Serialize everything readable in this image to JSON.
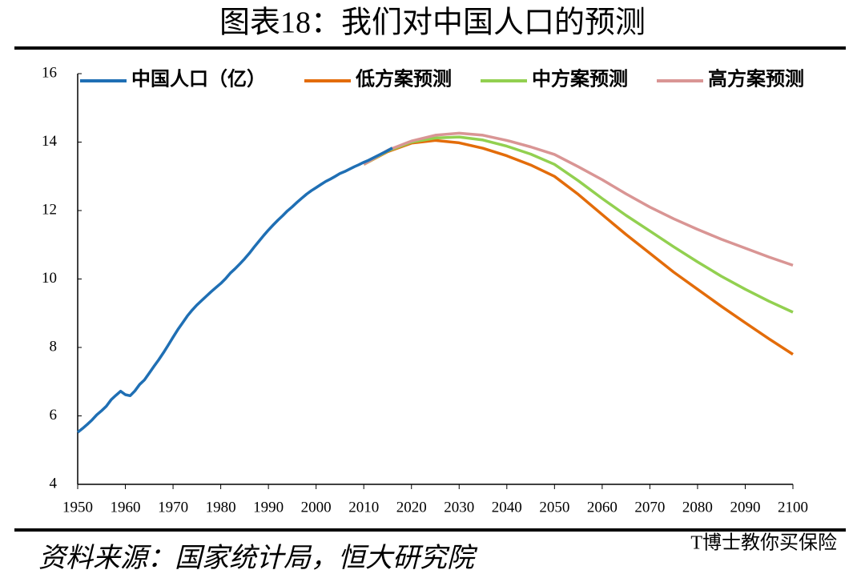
{
  "chart_data": {
    "type": "line",
    "title": "图表18：我们对中国人口的预测",
    "source": "资料来源：国家统计局，恒大研究院",
    "watermark": "T博士教你买保险",
    "xlim": [
      1950,
      2100
    ],
    "xticks": [
      1950,
      1960,
      1970,
      1980,
      1990,
      2000,
      2010,
      2020,
      2030,
      2040,
      2050,
      2060,
      2070,
      2080,
      2090,
      2100
    ],
    "ylim": [
      4,
      16
    ],
    "yticks": [
      4,
      6,
      8,
      10,
      12,
      14,
      16
    ],
    "grid": false,
    "series": [
      {
        "name": "中国人口（亿）",
        "color": "#1f6fb4",
        "x": [
          1950,
          1951,
          1952,
          1953,
          1954,
          1955,
          1956,
          1957,
          1958,
          1959,
          1960,
          1961,
          1962,
          1963,
          1964,
          1965,
          1966,
          1967,
          1968,
          1969,
          1970,
          1971,
          1972,
          1973,
          1974,
          1975,
          1976,
          1977,
          1978,
          1979,
          1980,
          1981,
          1982,
          1983,
          1984,
          1985,
          1986,
          1987,
          1988,
          1989,
          1990,
          1991,
          1992,
          1993,
          1994,
          1995,
          1996,
          1997,
          1998,
          1999,
          2000,
          2001,
          2002,
          2003,
          2004,
          2005,
          2006,
          2007,
          2008,
          2009,
          2010,
          2011,
          2012,
          2013,
          2014,
          2015,
          2016
        ],
        "values": [
          5.52,
          5.63,
          5.75,
          5.88,
          6.03,
          6.15,
          6.28,
          6.47,
          6.6,
          6.72,
          6.62,
          6.59,
          6.73,
          6.92,
          7.05,
          7.25,
          7.45,
          7.64,
          7.85,
          8.07,
          8.3,
          8.52,
          8.72,
          8.92,
          9.09,
          9.24,
          9.37,
          9.5,
          9.63,
          9.75,
          9.87,
          10.01,
          10.17,
          10.3,
          10.44,
          10.59,
          10.75,
          10.93,
          11.1,
          11.27,
          11.43,
          11.58,
          11.72,
          11.85,
          11.99,
          12.11,
          12.24,
          12.36,
          12.48,
          12.58,
          12.67,
          12.76,
          12.85,
          12.92,
          13.0,
          13.08,
          13.14,
          13.21,
          13.28,
          13.34,
          13.41,
          13.47,
          13.54,
          13.61,
          13.68,
          13.75,
          13.83
        ]
      },
      {
        "name": "低方案预测",
        "color": "#e36c0a",
        "x": [
          2010,
          2015,
          2020,
          2025,
          2030,
          2035,
          2040,
          2045,
          2050,
          2055,
          2060,
          2065,
          2070,
          2075,
          2080,
          2085,
          2090,
          2095,
          2100
        ],
        "values": [
          13.35,
          13.72,
          13.97,
          14.05,
          13.98,
          13.82,
          13.6,
          13.33,
          13.0,
          12.47,
          11.88,
          11.3,
          10.75,
          10.2,
          9.7,
          9.2,
          8.72,
          8.25,
          7.8
        ]
      },
      {
        "name": "中方案预测",
        "color": "#92d050",
        "x": [
          2010,
          2015,
          2020,
          2025,
          2030,
          2035,
          2040,
          2045,
          2050,
          2055,
          2060,
          2065,
          2070,
          2075,
          2080,
          2085,
          2090,
          2095,
          2100
        ],
        "values": [
          13.35,
          13.74,
          14.0,
          14.12,
          14.15,
          14.06,
          13.88,
          13.65,
          13.35,
          12.87,
          12.35,
          11.86,
          11.4,
          10.94,
          10.5,
          10.08,
          9.7,
          9.35,
          9.03
        ]
      },
      {
        "name": "高方案预测",
        "color": "#d99594",
        "x": [
          2010,
          2015,
          2020,
          2025,
          2030,
          2035,
          2040,
          2045,
          2050,
          2055,
          2060,
          2065,
          2070,
          2075,
          2080,
          2085,
          2090,
          2095,
          2100
        ],
        "values": [
          13.35,
          13.76,
          14.03,
          14.2,
          14.26,
          14.2,
          14.05,
          13.86,
          13.64,
          13.28,
          12.9,
          12.49,
          12.1,
          11.76,
          11.45,
          11.16,
          10.9,
          10.64,
          10.4
        ]
      }
    ]
  }
}
